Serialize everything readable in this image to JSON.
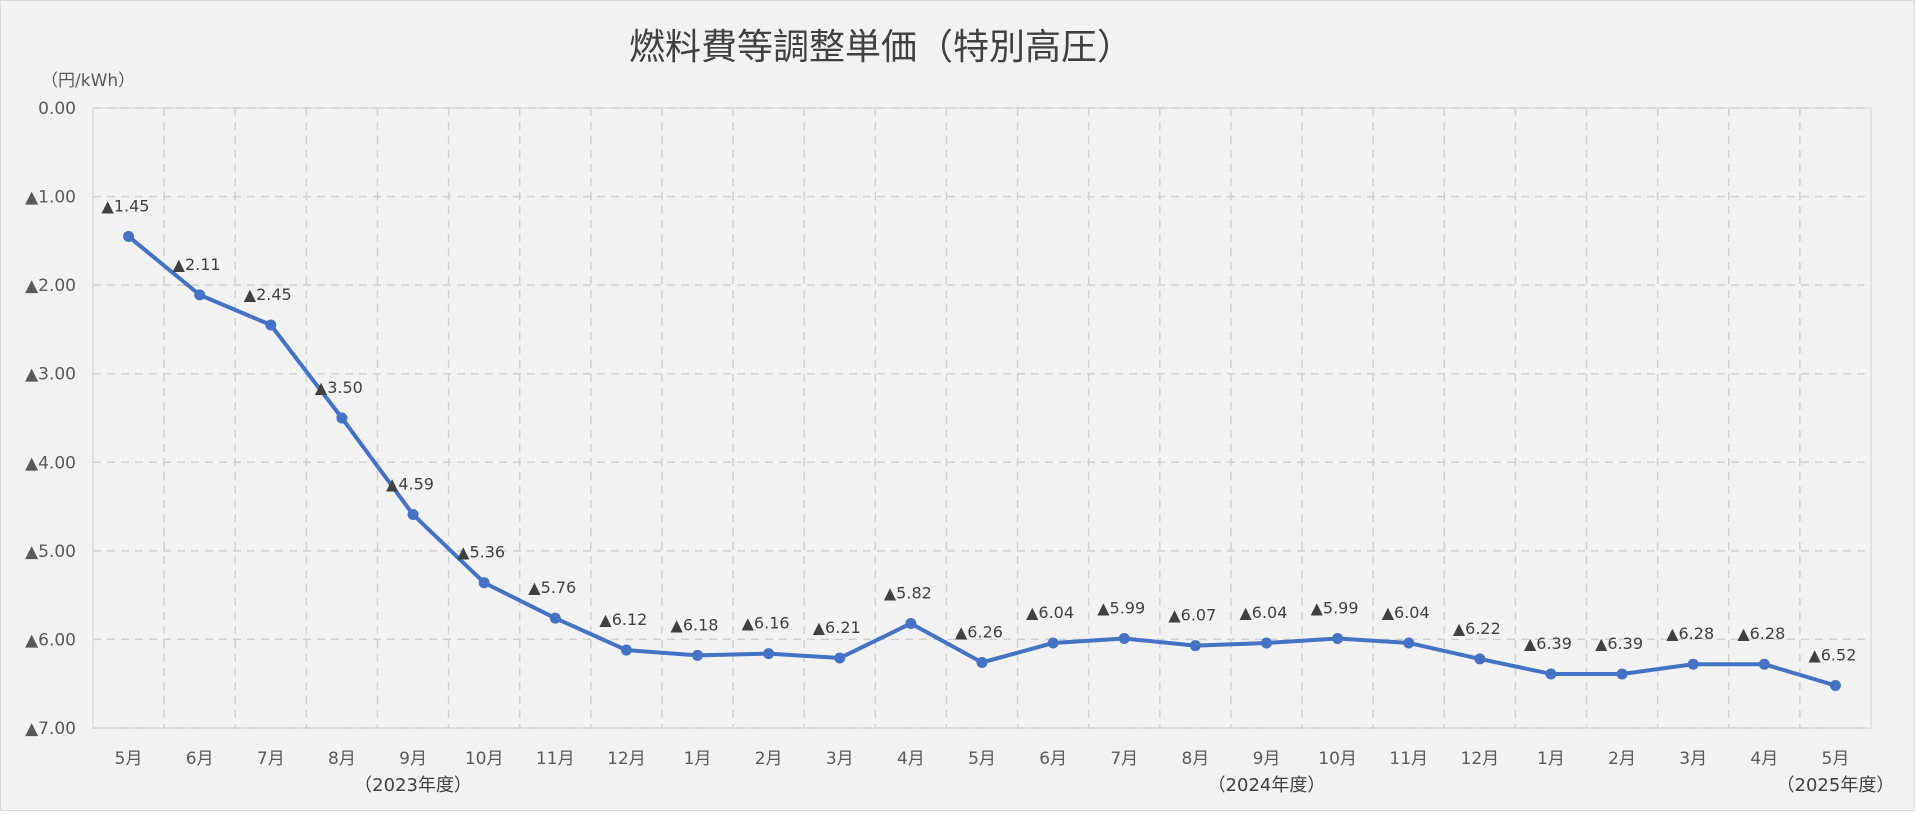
{
  "chart_data": {
    "type": "line",
    "title": "燃料費等調整単価（特別高圧）",
    "unit_label": "（円/kWh）",
    "ylim": [
      0,
      -7
    ],
    "y_ticks": [
      {
        "value": 0,
        "label": "0.00"
      },
      {
        "value": -1,
        "label": "▲1.00"
      },
      {
        "value": -2,
        "label": "▲2.00"
      },
      {
        "value": -3,
        "label": "▲3.00"
      },
      {
        "value": -4,
        "label": "▲4.00"
      },
      {
        "value": -5,
        "label": "▲5.00"
      },
      {
        "value": -6,
        "label": "▲6.00"
      },
      {
        "value": -7,
        "label": "▲7.00"
      }
    ],
    "grid": true,
    "categories": [
      "5月",
      "6月",
      "7月",
      "8月",
      "9月",
      "10月",
      "11月",
      "12月",
      "1月",
      "2月",
      "3月",
      "4月",
      "5月",
      "6月",
      "7月",
      "8月",
      "9月",
      "10月",
      "11月",
      "12月",
      "1月",
      "2月",
      "3月",
      "4月",
      "5月"
    ],
    "year_labels": [
      {
        "category_index": 4,
        "label": "（2023年度）"
      },
      {
        "category_index": 16,
        "label": "（2024年度）"
      },
      {
        "category_index": 24,
        "label": "（2025年度）"
      }
    ],
    "series": [
      {
        "color": "#4472c4",
        "values": [
          -1.45,
          -2.11,
          -2.45,
          -3.5,
          -4.59,
          -5.36,
          -5.76,
          -6.12,
          -6.18,
          -6.16,
          -6.21,
          -5.82,
          -6.26,
          -6.04,
          -5.99,
          -6.07,
          -6.04,
          -5.99,
          -6.04,
          -6.22,
          -6.39,
          -6.39,
          -6.28,
          -6.28,
          -6.52
        ],
        "labels": [
          "▲1.45",
          "▲2.11",
          "▲2.45",
          "▲3.50",
          "▲4.59",
          "▲5.36",
          "▲5.76",
          "▲6.12",
          "▲6.18",
          "▲6.16",
          "▲6.21",
          "▲5.82",
          "▲6.26",
          "▲6.04",
          "▲5.99",
          "▲6.07",
          "▲6.04",
          "▲5.99",
          "▲6.04",
          "▲6.22",
          "▲6.39",
          "▲6.39",
          "▲6.28",
          "▲6.28",
          "▲6.52"
        ]
      }
    ]
  }
}
